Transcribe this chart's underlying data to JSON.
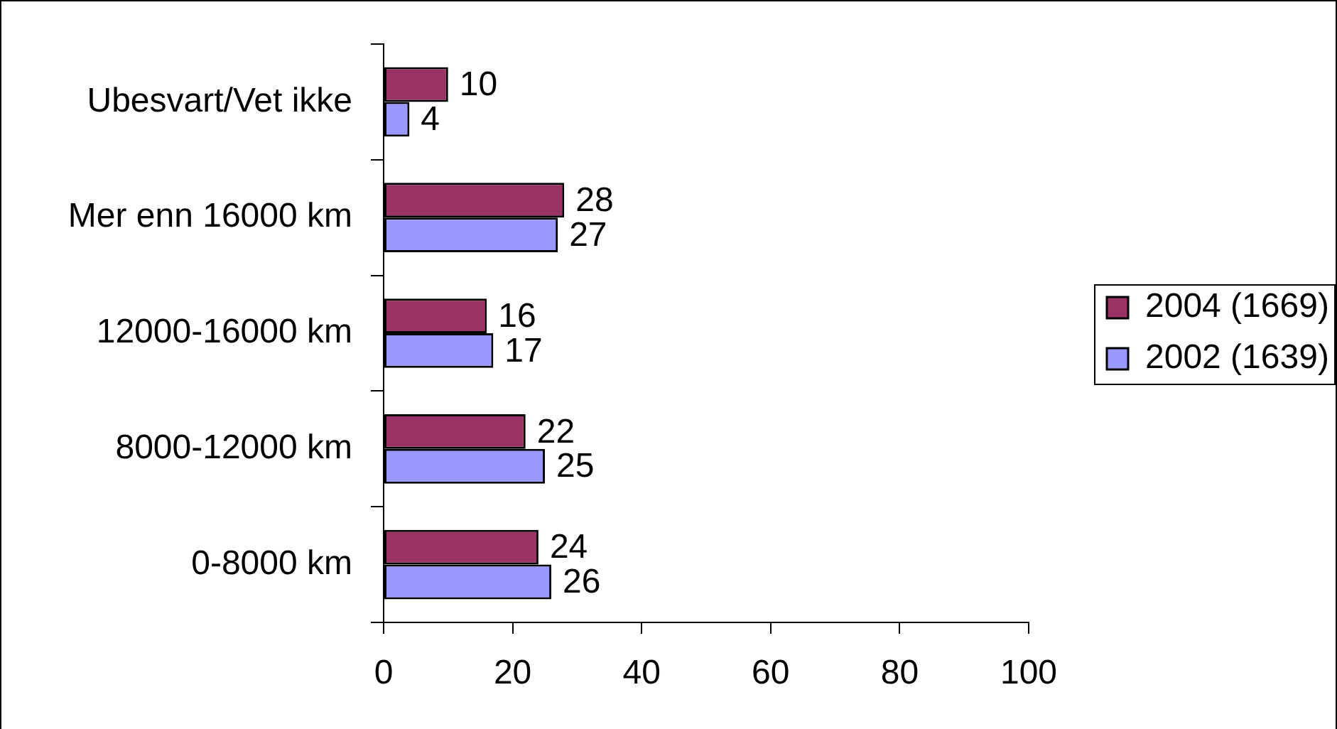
{
  "chart_data": {
    "type": "bar",
    "orientation": "horizontal",
    "categories": [
      "Ubesvart/Vet ikke",
      "Mer enn 16000 km",
      "12000-16000 km",
      "8000-12000 km",
      "0-8000 km"
    ],
    "series": [
      {
        "name": "2004 (1669)",
        "color": "#993366",
        "values": [
          10,
          28,
          16,
          22,
          24
        ]
      },
      {
        "name": "2002 (1639)",
        "color": "#9999ff",
        "values": [
          4,
          27,
          17,
          25,
          26
        ]
      }
    ],
    "xlim": [
      0,
      100
    ],
    "xticks": [
      0,
      20,
      40,
      60,
      80,
      100
    ],
    "grid": false,
    "legend": "right",
    "data_labels": true
  }
}
